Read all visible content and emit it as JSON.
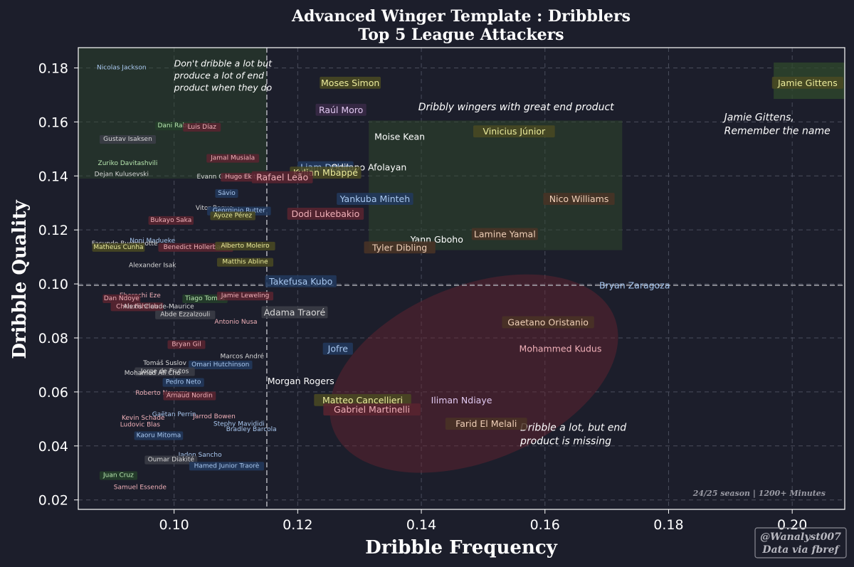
{
  "chart_data": {
    "type": "scatter",
    "title": "Advanced Winger Template : Dribblers",
    "subtitle": "Top 5 League Attackers",
    "xlabel": "Dribble Frequency",
    "ylabel": "Dribble Quality",
    "xlim": [
      0.0845,
      0.2085
    ],
    "ylim": [
      0.0165,
      0.1875
    ],
    "xticks": [
      "0.10",
      "0.12",
      "0.14",
      "0.16",
      "0.18",
      "0.20"
    ],
    "xtick_values": [
      0.1,
      0.12,
      0.14,
      0.16,
      0.18,
      0.2
    ],
    "yticks": [
      "0.02",
      "0.04",
      "0.06",
      "0.08",
      "0.10",
      "0.12",
      "0.14",
      "0.16",
      "0.18"
    ],
    "ytick_values": [
      0.02,
      0.04,
      0.06,
      0.08,
      0.1,
      0.12,
      0.14,
      0.16,
      0.18
    ],
    "grid": true,
    "reference_lines": {
      "x": 0.115,
      "y": 0.0995
    },
    "colors": {
      "background": "#1c1e2b",
      "grid": "#4a4d5c",
      "green_zone": "#2f4a2c",
      "red_zone": "#6b2430",
      "label_blue": "#223a5e",
      "label_red": "#5a2430",
      "label_olive": "#4a4a22",
      "label_green": "#24402a",
      "label_gray": "#3c3e48",
      "label_purple": "#3a2a48",
      "label_brown": "#4a3426",
      "label_none": "none",
      "text_default": "#ffffff",
      "text_blue": "#a9c8f0",
      "text_red": "#f0b0b8",
      "text_olive": "#ecec9c",
      "text_green": "#b8e8b0",
      "text_gray": "#d8d8d8",
      "text_purple": "#e0c8f0",
      "text_brown": "#f0d0b8"
    },
    "zones": [
      {
        "kind": "rect",
        "x0": 0.0845,
        "x1": 0.115,
        "y0": 0.139,
        "y1": 0.1875,
        "color": "green_zone",
        "opacity": 0.45
      },
      {
        "kind": "rect",
        "x0": 0.1315,
        "x1": 0.1725,
        "y0": 0.1125,
        "y1": 0.1605,
        "color": "green_zone",
        "opacity": 0.5
      },
      {
        "kind": "rect",
        "x0": 0.197,
        "x1": 0.2085,
        "y0": 0.1685,
        "y1": 0.182,
        "color": "green_zone",
        "opacity": 0.75
      },
      {
        "kind": "ellipse",
        "cx": 0.1485,
        "cy": 0.0668,
        "rx": 0.0245,
        "ry": 0.0325,
        "angle": -22,
        "color": "red_zone",
        "opacity": 0.45
      }
    ],
    "annotations": [
      {
        "lines": [
          "Don't dribble a lot but",
          "produce a lot of end",
          "product when they do"
        ],
        "x": 0.1,
        "y": 0.1805,
        "size": 12.5
      },
      {
        "lines": [
          "Dribbly wingers with great end product"
        ],
        "x": 0.1395,
        "y": 0.1643,
        "size": 14
      },
      {
        "lines": [
          "Jamie Gittens,",
          "Remember the name"
        ],
        "x": 0.189,
        "y": 0.1605,
        "size": 14
      },
      {
        "lines": [
          "Dribble a lot, but end",
          "product is missing"
        ],
        "x": 0.156,
        "y": 0.0456,
        "size": 14
      }
    ],
    "note": "24/25 season | 1200+ Minutes",
    "credit": [
      "@Wanalyst007",
      "Data via fbref"
    ],
    "players": [
      {
        "name": "Nicolas Jackson",
        "x": 0.0915,
        "y": 0.18,
        "size": 9,
        "bg": "label_none",
        "fg": "text_blue"
      },
      {
        "name": "Dani Raba",
        "x": 0.1,
        "y": 0.1585,
        "size": 9,
        "bg": "label_green",
        "fg": "text_green"
      },
      {
        "name": "Luis Díaz",
        "x": 0.1045,
        "y": 0.158,
        "size": 9,
        "bg": "label_red",
        "fg": "text_red"
      },
      {
        "name": "Gustav Isaksen",
        "x": 0.0925,
        "y": 0.1535,
        "size": 9,
        "bg": "label_gray",
        "fg": "text_gray"
      },
      {
        "name": "Jamal Musiala",
        "x": 0.1095,
        "y": 0.1465,
        "size": 9,
        "bg": "label_red",
        "fg": "text_red"
      },
      {
        "name": "Zuriko Davitashvili",
        "x": 0.0925,
        "y": 0.1445,
        "size": 9,
        "bg": "label_none",
        "fg": "text_green"
      },
      {
        "name": "Dejan Kulusevski",
        "x": 0.0915,
        "y": 0.1405,
        "size": 9,
        "bg": "label_none",
        "fg": "text_gray"
      },
      {
        "name": "Evann Guessand",
        "x": 0.108,
        "y": 0.1395,
        "size": 9,
        "bg": "label_none",
        "fg": "text_gray"
      },
      {
        "name": "Hugo Ekitiké",
        "x": 0.1115,
        "y": 0.1395,
        "size": 9,
        "bg": "label_red",
        "fg": "text_red"
      },
      {
        "name": "Sávio",
        "x": 0.1085,
        "y": 0.1335,
        "size": 9,
        "bg": "label_blue",
        "fg": "text_blue"
      },
      {
        "name": "Vitor Roque",
        "x": 0.1065,
        "y": 0.128,
        "size": 9,
        "bg": "label_none",
        "fg": "text_gray"
      },
      {
        "name": "Georginio Rutter",
        "x": 0.1105,
        "y": 0.127,
        "size": 9,
        "bg": "label_blue",
        "fg": "text_blue"
      },
      {
        "name": "Ayoze Pérez",
        "x": 0.1095,
        "y": 0.1252,
        "size": 9,
        "bg": "label_olive",
        "fg": "text_olive"
      },
      {
        "name": "Bukayo Saka",
        "x": 0.0995,
        "y": 0.1235,
        "size": 9,
        "bg": "label_red",
        "fg": "text_red"
      },
      {
        "name": "Noni Madueke",
        "x": 0.0965,
        "y": 0.1158,
        "size": 9,
        "bg": "label_none",
        "fg": "text_blue"
      },
      {
        "name": "Facundo Buonanotte",
        "x": 0.092,
        "y": 0.1148,
        "size": 9,
        "bg": "label_none",
        "fg": "text_gray"
      },
      {
        "name": "Matheus Cunha",
        "x": 0.091,
        "y": 0.1135,
        "size": 9,
        "bg": "label_olive",
        "fg": "text_olive"
      },
      {
        "name": "Benedict Hollerbach",
        "x": 0.1035,
        "y": 0.1135,
        "size": 9,
        "bg": "label_red",
        "fg": "text_red"
      },
      {
        "name": "Alberto Moleiro",
        "x": 0.1115,
        "y": 0.114,
        "size": 9,
        "bg": "label_olive",
        "fg": "text_olive"
      },
      {
        "name": "Matthis Abline",
        "x": 0.1115,
        "y": 0.108,
        "size": 9,
        "bg": "label_olive",
        "fg": "text_olive"
      },
      {
        "name": "Alexander Isak",
        "x": 0.0965,
        "y": 0.1068,
        "size": 9,
        "bg": "label_none",
        "fg": "text_gray"
      },
      {
        "name": "Takefusa Kubo",
        "x": 0.1205,
        "y": 0.101,
        "size": 12.5,
        "bg": "label_blue",
        "fg": "text_blue"
      },
      {
        "name": "Bryan Zaragoza",
        "x": 0.1745,
        "y": 0.0995,
        "size": 12.5,
        "bg": "label_none",
        "fg": "text_blue"
      },
      {
        "name": "Eberechi Eze",
        "x": 0.0945,
        "y": 0.0955,
        "size": 9,
        "bg": "label_none",
        "fg": "text_red"
      },
      {
        "name": "Dan Ndoye",
        "x": 0.0915,
        "y": 0.0945,
        "size": 9,
        "bg": "label_red",
        "fg": "text_red"
      },
      {
        "name": "Tiago Tomás",
        "x": 0.105,
        "y": 0.0945,
        "size": 9,
        "bg": "label_green",
        "fg": "text_green"
      },
      {
        "name": "Jamie Leweling",
        "x": 0.1115,
        "y": 0.0955,
        "size": 9,
        "bg": "label_red",
        "fg": "text_red"
      },
      {
        "name": "Chris Führich",
        "x": 0.094,
        "y": 0.0915,
        "size": 9,
        "bg": "label_red",
        "fg": "text_red"
      },
      {
        "name": "Alexis Claude-Maurice",
        "x": 0.0975,
        "y": 0.0915,
        "size": 9,
        "bg": "label_none",
        "fg": "text_gray"
      },
      {
        "name": "Adama Traoré",
        "x": 0.1195,
        "y": 0.0895,
        "size": 12.5,
        "bg": "label_gray",
        "fg": "text_gray"
      },
      {
        "name": "Abde Ezzalzouli",
        "x": 0.1018,
        "y": 0.0885,
        "size": 9,
        "bg": "label_gray",
        "fg": "text_gray"
      },
      {
        "name": "Antonio Nusa",
        "x": 0.11,
        "y": 0.0858,
        "size": 9,
        "bg": "label_none",
        "fg": "text_red"
      },
      {
        "name": "Gaetano Oristanio",
        "x": 0.1605,
        "y": 0.0858,
        "size": 12.5,
        "bg": "label_brown",
        "fg": "text_brown"
      },
      {
        "name": "Bryan Gil",
        "x": 0.102,
        "y": 0.0775,
        "size": 9,
        "bg": "label_red",
        "fg": "text_red"
      },
      {
        "name": "Jofre",
        "x": 0.1265,
        "y": 0.076,
        "size": 12.5,
        "bg": "label_blue",
        "fg": "text_blue"
      },
      {
        "name": "Mohammed Kudus",
        "x": 0.1625,
        "y": 0.076,
        "size": 12.5,
        "bg": "label_none",
        "fg": "text_red"
      },
      {
        "name": "Marcos André",
        "x": 0.111,
        "y": 0.073,
        "size": 9,
        "bg": "label_none",
        "fg": "text_gray"
      },
      {
        "name": "Tomáš Suslov",
        "x": 0.0985,
        "y": 0.0705,
        "size": 9,
        "bg": "label_none",
        "fg": "text_gray"
      },
      {
        "name": "Omari Hutchinson",
        "x": 0.1075,
        "y": 0.07,
        "size": 9,
        "bg": "label_blue",
        "fg": "text_blue"
      },
      {
        "name": "Jorge de Frutos",
        "x": 0.0985,
        "y": 0.0675,
        "size": 9,
        "bg": "label_gray",
        "fg": "text_gray"
      },
      {
        "name": "Mohamed Ali Cho",
        "x": 0.0965,
        "y": 0.0668,
        "size": 9,
        "bg": "label_none",
        "fg": "text_gray"
      },
      {
        "name": "Morgan Rogers",
        "x": 0.1205,
        "y": 0.064,
        "size": 12.5,
        "bg": "label_none",
        "fg": "text_default"
      },
      {
        "name": "Pedro Neto",
        "x": 0.1015,
        "y": 0.0635,
        "size": 9,
        "bg": "label_blue",
        "fg": "text_blue"
      },
      {
        "name": "Roberto Navarro",
        "x": 0.098,
        "y": 0.0595,
        "size": 9,
        "bg": "label_none",
        "fg": "text_red"
      },
      {
        "name": "Arnaud Nordin",
        "x": 0.1025,
        "y": 0.0585,
        "size": 9,
        "bg": "label_red",
        "fg": "text_red"
      },
      {
        "name": "Matteo Cancellieri",
        "x": 0.1305,
        "y": 0.057,
        "size": 12.5,
        "bg": "label_olive",
        "fg": "text_olive"
      },
      {
        "name": "Iliman Ndiaye",
        "x": 0.1465,
        "y": 0.057,
        "size": 12.5,
        "bg": "label_none",
        "fg": "text_purple"
      },
      {
        "name": "Gabriel Martinelli",
        "x": 0.132,
        "y": 0.0535,
        "size": 12.5,
        "bg": "label_red",
        "fg": "text_red"
      },
      {
        "name": "Gaëtan Perrin",
        "x": 0.1,
        "y": 0.0515,
        "size": 9,
        "bg": "label_none",
        "fg": "text_blue"
      },
      {
        "name": "Jarrod Bowen",
        "x": 0.1065,
        "y": 0.0508,
        "size": 9,
        "bg": "label_none",
        "fg": "text_red"
      },
      {
        "name": "Kevin Schade",
        "x": 0.095,
        "y": 0.0502,
        "size": 9,
        "bg": "label_none",
        "fg": "text_red"
      },
      {
        "name": "Farid El Melali",
        "x": 0.1505,
        "y": 0.0482,
        "size": 12.5,
        "bg": "label_brown",
        "fg": "text_brown"
      },
      {
        "name": "Ludovic Blas",
        "x": 0.0945,
        "y": 0.0477,
        "size": 9,
        "bg": "label_none",
        "fg": "text_red"
      },
      {
        "name": "Stephy Mavididi",
        "x": 0.1105,
        "y": 0.048,
        "size": 9,
        "bg": "label_none",
        "fg": "text_blue"
      },
      {
        "name": "Bradley Barcola",
        "x": 0.1125,
        "y": 0.046,
        "size": 9,
        "bg": "label_none",
        "fg": "text_blue"
      },
      {
        "name": "Kaoru Mitoma",
        "x": 0.0975,
        "y": 0.0438,
        "size": 9,
        "bg": "label_blue",
        "fg": "text_blue"
      },
      {
        "name": "Jadon Sancho",
        "x": 0.1042,
        "y": 0.0365,
        "size": 9,
        "bg": "label_none",
        "fg": "text_blue"
      },
      {
        "name": "Oumar Diakité",
        "x": 0.0995,
        "y": 0.0348,
        "size": 9,
        "bg": "label_gray",
        "fg": "text_gray"
      },
      {
        "name": "Hamed Junior Traorè",
        "x": 0.1085,
        "y": 0.0325,
        "size": 9,
        "bg": "label_blue",
        "fg": "text_blue"
      },
      {
        "name": "Juan Cruz",
        "x": 0.091,
        "y": 0.029,
        "size": 9,
        "bg": "label_green",
        "fg": "text_green"
      },
      {
        "name": "Samuel Essende",
        "x": 0.0945,
        "y": 0.0245,
        "size": 9,
        "bg": "label_none",
        "fg": "text_red"
      },
      {
        "name": "Moses Simon",
        "x": 0.1285,
        "y": 0.1745,
        "size": 12.5,
        "bg": "label_olive",
        "fg": "text_olive"
      },
      {
        "name": "Raúl Moro",
        "x": 0.127,
        "y": 0.1645,
        "size": 12.5,
        "bg": "label_purple",
        "fg": "text_purple"
      },
      {
        "name": "Jamie Gittens",
        "x": 0.2025,
        "y": 0.1745,
        "size": 12.5,
        "bg": "label_olive",
        "fg": "text_olive"
      },
      {
        "name": "Vinicius Júnior",
        "x": 0.155,
        "y": 0.1565,
        "size": 12.5,
        "bg": "label_olive",
        "fg": "text_olive"
      },
      {
        "name": "Moise Kean",
        "x": 0.1365,
        "y": 0.1545,
        "size": 12.5,
        "bg": "label_none",
        "fg": "text_default"
      },
      {
        "name": "Liam Delap",
        "x": 0.1245,
        "y": 0.1432,
        "size": 12.5,
        "bg": "label_blue",
        "fg": "text_blue"
      },
      {
        "name": "Odilapo Afolayan",
        "x": 0.1315,
        "y": 0.1432,
        "size": 12.5,
        "bg": "label_none",
        "fg": "text_default"
      },
      {
        "name": "Kylian Mbappé",
        "x": 0.1245,
        "y": 0.1412,
        "size": 12.5,
        "bg": "label_olive",
        "fg": "text_olive"
      },
      {
        "name": "Rafael Leão",
        "x": 0.1175,
        "y": 0.1395,
        "size": 12.5,
        "bg": "label_red",
        "fg": "text_red"
      },
      {
        "name": "Yankuba Minteh",
        "x": 0.1325,
        "y": 0.1315,
        "size": 12.5,
        "bg": "label_blue",
        "fg": "text_blue"
      },
      {
        "name": "Nico Williams",
        "x": 0.1655,
        "y": 0.1315,
        "size": 12.5,
        "bg": "label_brown",
        "fg": "text_brown"
      },
      {
        "name": "Dodi Lukebakio",
        "x": 0.1245,
        "y": 0.126,
        "size": 12.5,
        "bg": "label_red",
        "fg": "text_red"
      },
      {
        "name": "Lamine Yamal",
        "x": 0.1535,
        "y": 0.1185,
        "size": 12.5,
        "bg": "label_brown",
        "fg": "text_brown"
      },
      {
        "name": "Yann Gboho",
        "x": 0.1425,
        "y": 0.1165,
        "size": 12.5,
        "bg": "label_none",
        "fg": "text_default"
      },
      {
        "name": "Tyler Dibling",
        "x": 0.1365,
        "y": 0.1135,
        "size": 12.5,
        "bg": "label_brown",
        "fg": "text_brown"
      }
    ]
  }
}
